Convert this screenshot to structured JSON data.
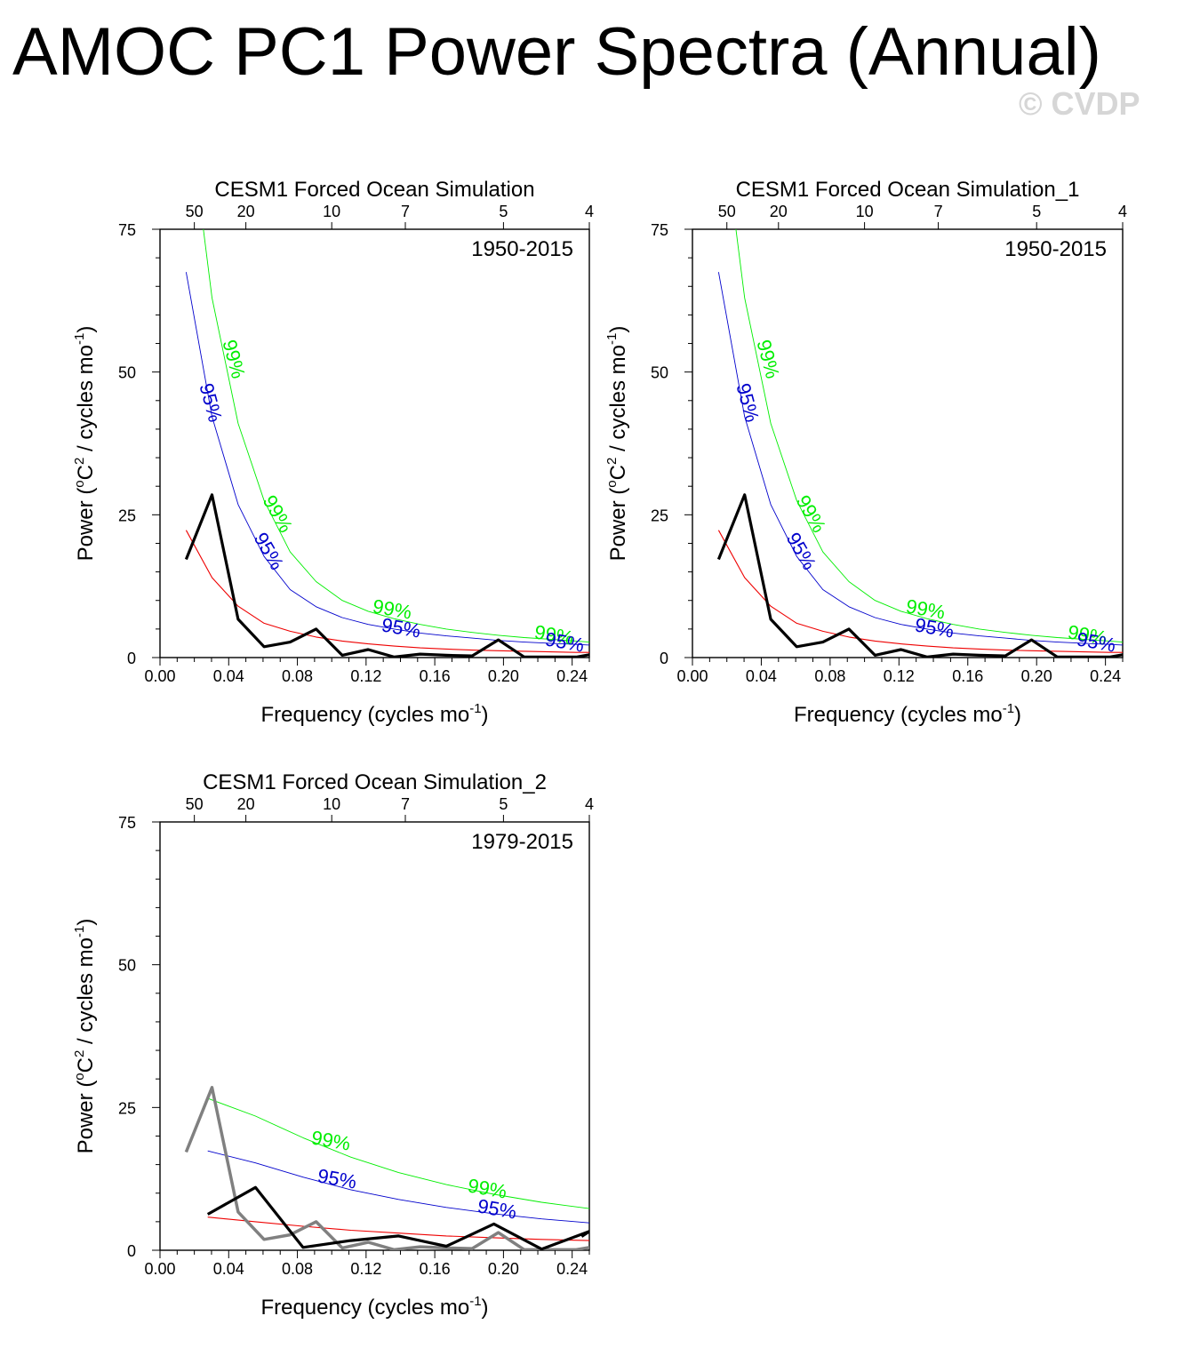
{
  "page": {
    "title": "AMOC PC1 Power Spectra (Annual)",
    "watermark": "© CVDP"
  },
  "colors": {
    "significance_99": "#00ee00",
    "significance_95": "#0000cc",
    "red_noise": "#ee0000",
    "spectrum": "#000000",
    "reference_spectrum": "#808080"
  },
  "chart_data": [
    {
      "type": "line",
      "title": "CESM1 Forced Ocean Simulation",
      "period_label": "1950-2015",
      "xlabel": "Frequency (cycles mo",
      "xlabel_sup": "-1",
      "xlabel_end": ")",
      "ylabel": "Power (",
      "ylabel_parts": [
        "Power (",
        "o",
        "C",
        "2",
        " / cycles mo",
        "-1",
        ")"
      ],
      "xlim": [
        0,
        0.25
      ],
      "ylim": [
        0,
        75
      ],
      "x_ticks": [
        0.0,
        0.04,
        0.08,
        0.12,
        0.16,
        0.2,
        0.24
      ],
      "x_tick_labels": [
        "0.00",
        "0.04",
        "0.08",
        "0.12",
        "0.16",
        "0.20",
        "0.24"
      ],
      "y_ticks": [
        0,
        25,
        50,
        75
      ],
      "y_tick_labels": [
        "0",
        "25",
        "50",
        "75"
      ],
      "top_axis_period_labels": [
        "50",
        "20",
        "10",
        "7",
        "5",
        "4"
      ],
      "top_axis_periods": [
        50,
        20,
        10,
        7,
        5,
        4
      ],
      "confidence_labels": {
        "c99": "99%",
        "c95": "95%"
      },
      "series": [
        {
          "name": "spectrum",
          "x": [
            0.0152,
            0.0303,
            0.0455,
            0.0606,
            0.0758,
            0.0909,
            0.1061,
            0.1212,
            0.1364,
            0.1515,
            0.1667,
            0.1818,
            0.197,
            0.2121,
            0.2273,
            0.2424,
            0.25
          ],
          "values": [
            17.2,
            28.5,
            6.7,
            1.9,
            2.7,
            5.0,
            0.4,
            1.4,
            0.1,
            0.6,
            0.4,
            0.3,
            3.1,
            0.1,
            0.1,
            0.1,
            0.5
          ]
        },
        {
          "name": "red_noise",
          "x": [
            0.0152,
            0.0303,
            0.0455,
            0.0606,
            0.0758,
            0.0909,
            0.1061,
            0.1212,
            0.1364,
            0.1515,
            0.1667,
            0.1818,
            0.197,
            0.2121,
            0.2273,
            0.2424,
            0.25
          ],
          "values": [
            22.3,
            14.0,
            9.0,
            6.0,
            4.6,
            3.6,
            2.9,
            2.4,
            2.0,
            1.7,
            1.5,
            1.3,
            1.2,
            1.1,
            1.0,
            0.9,
            0.9
          ]
        },
        {
          "name": "conf95",
          "x": [
            0.0152,
            0.0303,
            0.0455,
            0.0606,
            0.0758,
            0.0909,
            0.1061,
            0.1212,
            0.1364,
            0.1515,
            0.1667,
            0.1818,
            0.197,
            0.2121,
            0.2273,
            0.2424,
            0.25
          ],
          "values": [
            67.5,
            42.2,
            26.8,
            17.7,
            11.9,
            8.9,
            7.0,
            5.8,
            5.0,
            4.3,
            3.8,
            3.4,
            3.0,
            2.7,
            2.5,
            2.3,
            2.2
          ]
        },
        {
          "name": "conf99",
          "x": [
            0.0152,
            0.0303,
            0.0455,
            0.0606,
            0.0758,
            0.0909,
            0.1061,
            0.1212,
            0.1364,
            0.1515,
            0.1667,
            0.1818,
            0.197,
            0.2121,
            0.2273,
            0.2424,
            0.25
          ],
          "values": [
            99.0,
            63.0,
            41.0,
            27.5,
            18.5,
            13.3,
            10.0,
            8.1,
            6.8,
            5.8,
            5.0,
            4.4,
            3.9,
            3.5,
            3.2,
            2.9,
            2.7
          ]
        }
      ]
    },
    {
      "type": "line",
      "title": "CESM1 Forced Ocean Simulation_1",
      "period_label": "1950-2015",
      "xlabel": "Frequency (cycles mo",
      "xlabel_sup": "-1",
      "xlabel_end": ")",
      "ylabel": "Power (",
      "ylabel_parts": [
        "Power (",
        "o",
        "C",
        "2",
        " / cycles mo",
        "-1",
        ")"
      ],
      "xlim": [
        0,
        0.25
      ],
      "ylim": [
        0,
        75
      ],
      "x_ticks": [
        0.0,
        0.04,
        0.08,
        0.12,
        0.16,
        0.2,
        0.24
      ],
      "x_tick_labels": [
        "0.00",
        "0.04",
        "0.08",
        "0.12",
        "0.16",
        "0.20",
        "0.24"
      ],
      "y_ticks": [
        0,
        25,
        50,
        75
      ],
      "y_tick_labels": [
        "0",
        "25",
        "50",
        "75"
      ],
      "top_axis_period_labels": [
        "50",
        "20",
        "10",
        "7",
        "5",
        "4"
      ],
      "top_axis_periods": [
        50,
        20,
        10,
        7,
        5,
        4
      ],
      "confidence_labels": {
        "c99": "99%",
        "c95": "95%"
      },
      "series": [
        {
          "name": "spectrum",
          "x": [
            0.0152,
            0.0303,
            0.0455,
            0.0606,
            0.0758,
            0.0909,
            0.1061,
            0.1212,
            0.1364,
            0.1515,
            0.1667,
            0.1818,
            0.197,
            0.2121,
            0.2273,
            0.2424,
            0.25
          ],
          "values": [
            17.2,
            28.5,
            6.7,
            1.9,
            2.7,
            5.0,
            0.4,
            1.4,
            0.1,
            0.6,
            0.4,
            0.3,
            3.1,
            0.1,
            0.1,
            0.1,
            0.5
          ]
        },
        {
          "name": "red_noise",
          "x": [
            0.0152,
            0.0303,
            0.0455,
            0.0606,
            0.0758,
            0.0909,
            0.1061,
            0.1212,
            0.1364,
            0.1515,
            0.1667,
            0.1818,
            0.197,
            0.2121,
            0.2273,
            0.2424,
            0.25
          ],
          "values": [
            22.3,
            14.0,
            9.0,
            6.0,
            4.6,
            3.6,
            2.9,
            2.4,
            2.0,
            1.7,
            1.5,
            1.3,
            1.2,
            1.1,
            1.0,
            0.9,
            0.9
          ]
        },
        {
          "name": "conf95",
          "x": [
            0.0152,
            0.0303,
            0.0455,
            0.0606,
            0.0758,
            0.0909,
            0.1061,
            0.1212,
            0.1364,
            0.1515,
            0.1667,
            0.1818,
            0.197,
            0.2121,
            0.2273,
            0.2424,
            0.25
          ],
          "values": [
            67.5,
            42.2,
            26.8,
            17.7,
            11.9,
            8.9,
            7.0,
            5.8,
            5.0,
            4.3,
            3.8,
            3.4,
            3.0,
            2.7,
            2.5,
            2.3,
            2.2
          ]
        },
        {
          "name": "conf99",
          "x": [
            0.0152,
            0.0303,
            0.0455,
            0.0606,
            0.0758,
            0.0909,
            0.1061,
            0.1212,
            0.1364,
            0.1515,
            0.1667,
            0.1818,
            0.197,
            0.2121,
            0.2273,
            0.2424,
            0.25
          ],
          "values": [
            99.0,
            63.0,
            41.0,
            27.5,
            18.5,
            13.3,
            10.0,
            8.1,
            6.8,
            5.8,
            5.0,
            4.4,
            3.9,
            3.5,
            3.2,
            2.9,
            2.7
          ]
        }
      ]
    },
    {
      "type": "line",
      "title": "CESM1 Forced Ocean Simulation_2",
      "period_label": "1979-2015",
      "xlabel": "Frequency (cycles mo",
      "xlabel_sup": "-1",
      "xlabel_end": ")",
      "ylabel": "Power (",
      "ylabel_parts": [
        "Power (",
        "o",
        "C",
        "2",
        " / cycles mo",
        "-1",
        ")"
      ],
      "xlim": [
        0,
        0.25
      ],
      "ylim": [
        0,
        75
      ],
      "x_ticks": [
        0.0,
        0.04,
        0.08,
        0.12,
        0.16,
        0.2,
        0.24
      ],
      "x_tick_labels": [
        "0.00",
        "0.04",
        "0.08",
        "0.12",
        "0.16",
        "0.20",
        "0.24"
      ],
      "y_ticks": [
        0,
        25,
        50,
        75
      ],
      "y_tick_labels": [
        "0",
        "25",
        "50",
        "75"
      ],
      "top_axis_period_labels": [
        "50",
        "20",
        "10",
        "7",
        "5",
        "4"
      ],
      "top_axis_periods": [
        50,
        20,
        10,
        7,
        5,
        4
      ],
      "confidence_labels": {
        "c99": "99%",
        "c95": "95%"
      },
      "series": [
        {
          "name": "reference_spectrum",
          "x": [
            0.0152,
            0.0303,
            0.0455,
            0.0606,
            0.0758,
            0.0909,
            0.1061,
            0.1212,
            0.1364,
            0.1515,
            0.1667,
            0.1818,
            0.197,
            0.2121,
            0.2273,
            0.2424,
            0.25
          ],
          "values": [
            17.2,
            28.5,
            6.7,
            1.9,
            2.7,
            5.0,
            0.4,
            1.4,
            0.1,
            0.6,
            0.4,
            0.3,
            3.1,
            0.1,
            0.1,
            0.1,
            0.5
          ]
        },
        {
          "name": "spectrum",
          "x": [
            0.0278,
            0.0556,
            0.0833,
            0.1111,
            0.1389,
            0.1667,
            0.1944,
            0.2222,
            0.25,
            0.2455
          ],
          "values": [
            6.3,
            11.0,
            0.5,
            1.7,
            2.5,
            0.7,
            4.6,
            0.2,
            3.3,
            2.4
          ]
        },
        {
          "name": "red_noise",
          "x": [
            0.0278,
            0.0556,
            0.0833,
            0.1111,
            0.1389,
            0.1667,
            0.1944,
            0.2222,
            0.25
          ],
          "values": [
            5.8,
            5.0,
            4.2,
            3.5,
            3.0,
            2.5,
            2.2,
            1.9,
            1.7
          ]
        },
        {
          "name": "conf95",
          "x": [
            0.0278,
            0.0556,
            0.0833,
            0.1111,
            0.1389,
            0.1667,
            0.1944,
            0.2222,
            0.25
          ],
          "values": [
            17.4,
            15.3,
            12.8,
            10.6,
            8.9,
            7.5,
            6.4,
            5.5,
            4.8
          ]
        },
        {
          "name": "conf99",
          "x": [
            0.0278,
            0.0556,
            0.0833,
            0.1111,
            0.1389,
            0.1667,
            0.1944,
            0.2222,
            0.25
          ],
          "values": [
            26.6,
            23.5,
            19.7,
            16.3,
            13.6,
            11.5,
            9.8,
            8.4,
            7.3
          ]
        }
      ]
    }
  ]
}
